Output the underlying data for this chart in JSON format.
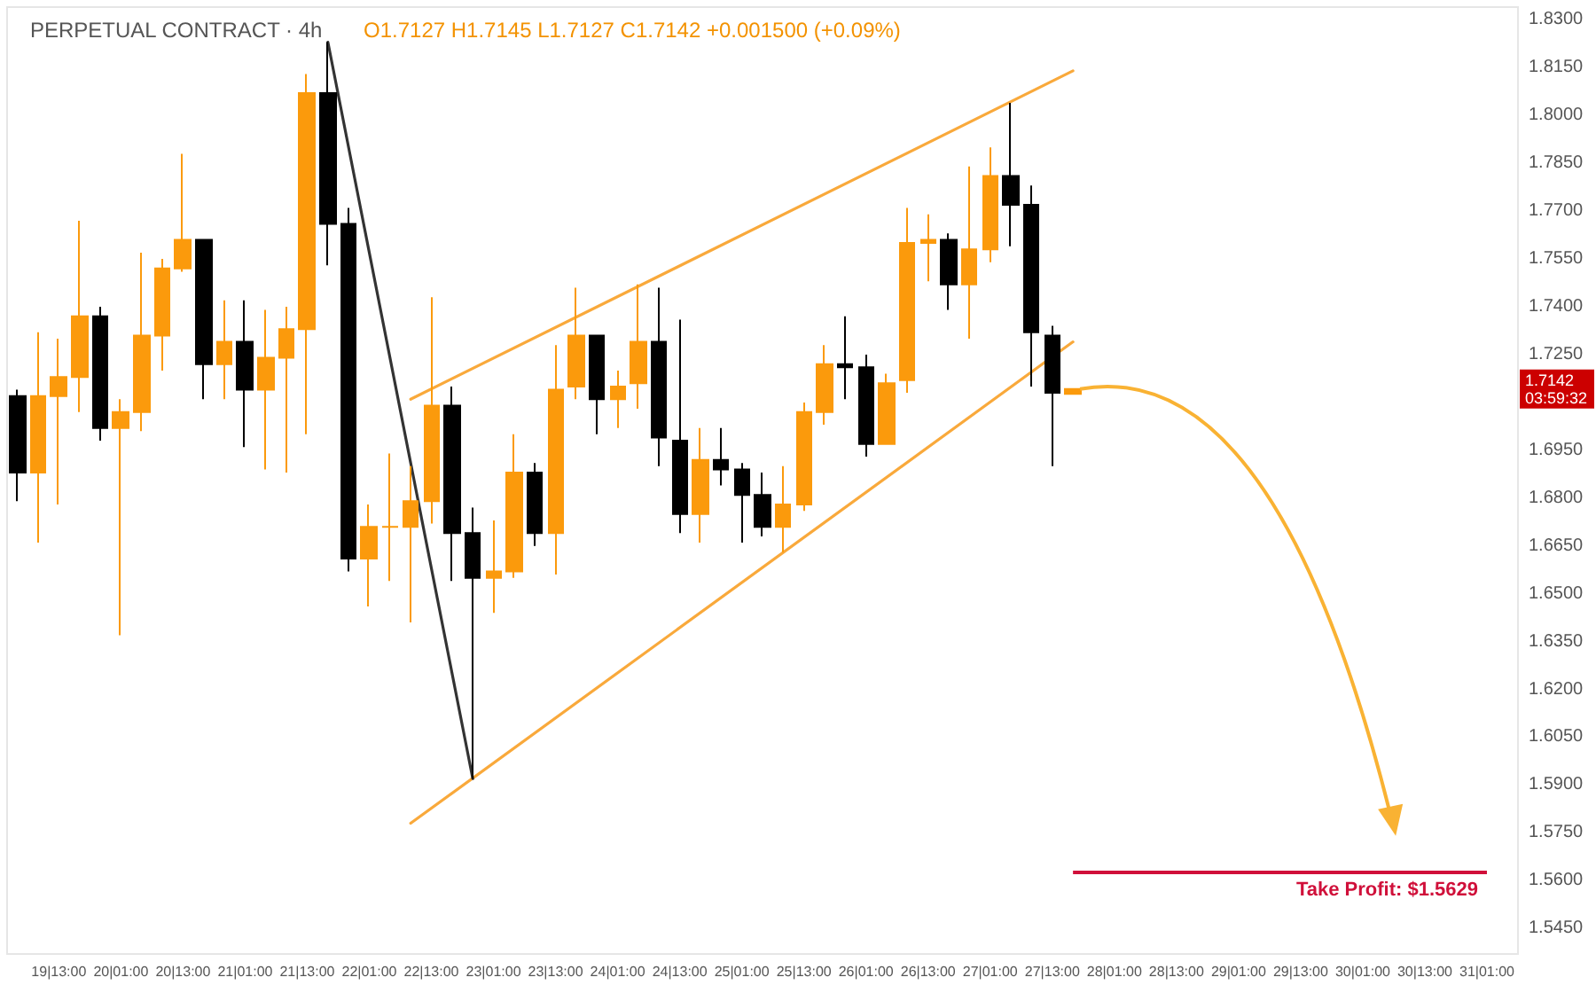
{
  "chart_data": {
    "type": "candlestick",
    "title": "PERPETUAL CONTRACT · 4h",
    "subtitle": "O1.7127 H1.7145 L1.7127 C1.7142 +0.001500 (+0.09%)",
    "categories": [
      null,
      null,
      "19|13:00",
      null,
      null,
      "20|01:00",
      null,
      null,
      "20|13:00",
      null,
      null,
      "21|01:00",
      null,
      null,
      "21|13:00",
      null,
      null,
      "22|01:00",
      null,
      null,
      "22|13:00",
      null,
      null,
      "23|01:00",
      null,
      null,
      "23|13:00",
      null,
      null,
      "24|01:00",
      null,
      null,
      "24|13:00",
      null,
      null,
      "25|01:00",
      null,
      null,
      "25|13:00",
      null,
      null,
      "26|01:00",
      null,
      null,
      "26|13:00",
      null,
      null,
      "27|01:00",
      null,
      null,
      "27|13:00",
      null,
      null,
      "28|01:00",
      null,
      null,
      "28|13:00",
      null,
      null,
      "29|01:00",
      null,
      null,
      "29|13:00",
      null,
      null,
      "30|01:00",
      null,
      null,
      "30|13:00",
      null,
      null,
      "31|01:00",
      null
    ],
    "ohlc": [
      [
        1.712,
        1.714,
        1.679,
        1.688
      ],
      [
        1.688,
        1.732,
        1.666,
        1.712
      ],
      [
        1.712,
        1.73,
        1.678,
        1.718
      ],
      [
        1.718,
        1.767,
        1.707,
        1.737
      ],
      [
        1.737,
        1.74,
        1.698,
        1.702
      ],
      [
        1.702,
        1.711,
        1.637,
        1.707
      ],
      [
        1.707,
        1.757,
        1.701,
        1.731
      ],
      [
        1.731,
        1.755,
        1.72,
        1.752
      ],
      [
        1.752,
        1.788,
        1.751,
        1.761
      ],
      [
        1.761,
        1.761,
        1.711,
        1.722
      ],
      [
        1.722,
        1.742,
        1.711,
        1.729
      ],
      [
        1.729,
        1.742,
        1.696,
        1.714
      ],
      [
        1.714,
        1.739,
        1.689,
        1.724
      ],
      [
        1.724,
        1.74,
        1.688,
        1.733
      ],
      [
        1.733,
        1.813,
        1.7,
        1.807
      ],
      [
        1.807,
        1.823,
        1.753,
        1.766
      ],
      [
        1.766,
        1.771,
        1.657,
        1.661
      ],
      [
        1.661,
        1.678,
        1.646,
        1.671
      ],
      [
        1.671,
        1.694,
        1.654,
        1.671
      ],
      [
        1.671,
        1.69,
        1.641,
        1.679
      ],
      [
        1.679,
        1.743,
        1.672,
        1.709
      ],
      [
        1.709,
        1.715,
        1.654,
        1.669
      ],
      [
        1.669,
        1.677,
        1.592,
        1.655
      ],
      [
        1.655,
        1.673,
        1.644,
        1.657
      ],
      [
        1.657,
        1.7,
        1.655,
        1.688
      ],
      [
        1.688,
        1.691,
        1.665,
        1.669
      ],
      [
        1.669,
        1.728,
        1.656,
        1.714
      ],
      [
        1.715,
        1.746,
        1.711,
        1.731
      ],
      [
        1.731,
        1.731,
        1.7,
        1.711
      ],
      [
        1.711,
        1.72,
        1.702,
        1.715
      ],
      [
        1.716,
        1.747,
        1.708,
        1.729
      ],
      [
        1.729,
        1.746,
        1.69,
        1.699
      ],
      [
        1.698,
        1.736,
        1.669,
        1.675
      ],
      [
        1.675,
        1.702,
        1.666,
        1.692
      ],
      [
        1.692,
        1.702,
        1.684,
        1.689
      ],
      [
        1.689,
        1.691,
        1.666,
        1.681
      ],
      [
        1.681,
        1.688,
        1.668,
        1.671
      ],
      [
        1.671,
        1.69,
        1.663,
        1.678
      ],
      [
        1.678,
        1.71,
        1.676,
        1.707
      ],
      [
        1.707,
        1.728,
        1.703,
        1.722
      ],
      [
        1.722,
        1.737,
        1.711,
        1.721
      ],
      [
        1.721,
        1.725,
        1.693,
        1.697
      ],
      [
        1.697,
        1.719,
        1.697,
        1.716
      ],
      [
        1.717,
        1.771,
        1.713,
        1.76
      ],
      [
        1.76,
        1.769,
        1.748,
        1.761
      ],
      [
        1.761,
        1.763,
        1.739,
        1.747
      ],
      [
        1.747,
        1.784,
        1.73,
        1.758
      ],
      [
        1.758,
        1.79,
        1.754,
        1.781
      ],
      [
        1.781,
        1.804,
        1.759,
        1.772
      ],
      [
        1.772,
        1.778,
        1.715,
        1.732
      ],
      [
        1.731,
        1.734,
        1.69,
        1.713
      ],
      [
        1.7127,
        1.7145,
        1.7127,
        1.7142
      ],
      null,
      null,
      null,
      null,
      null,
      null,
      null,
      null,
      null,
      null,
      null,
      null,
      null,
      null,
      null,
      null,
      null,
      null,
      null,
      null,
      null
    ],
    "colors": [
      "#000000",
      "#fb9a0c",
      "#fb9a0c",
      "#fb9a0c",
      "#000000",
      "#fb9a0c",
      "#fb9a0c",
      "#fb9a0c",
      "#fb9a0c",
      "#000000",
      "#fb9a0c",
      "#000000",
      "#fb9a0c",
      "#fb9a0c",
      "#fb9a0c",
      "#000000",
      "#000000",
      "#fb9a0c",
      "#fb9a0c",
      "#fb9a0c",
      "#fb9a0c",
      "#000000",
      "#000000",
      "#fb9a0c",
      "#fb9a0c",
      "#000000",
      "#fb9a0c",
      "#fb9a0c",
      "#000000",
      "#fb9a0c",
      "#fb9a0c",
      "#000000",
      "#000000",
      "#fb9a0c",
      "#000000",
      "#000000",
      "#000000",
      "#fb9a0c",
      "#fb9a0c",
      "#fb9a0c",
      "#000000",
      "#000000",
      "#fb9a0c",
      "#fb9a0c",
      "#fb9a0c",
      "#000000",
      "#fb9a0c",
      "#fb9a0c",
      "#000000",
      "#000000",
      "#000000",
      "#fb9a0c",
      null,
      null,
      null,
      null,
      null,
      null,
      null,
      null,
      null,
      null,
      null,
      null,
      null,
      null,
      null,
      null,
      null,
      null,
      null,
      null,
      null
    ],
    "series": [
      {
        "type": "line",
        "color": "#f9a93b",
        "values": [
          null,
          null,
          null,
          null,
          null,
          null,
          null,
          null,
          null,
          null,
          null,
          null,
          null,
          null,
          null,
          null,
          null,
          null,
          null,
          1.711,
          null,
          null,
          null,
          null,
          null,
          null,
          null,
          null,
          null,
          null,
          null,
          null,
          null,
          null,
          null,
          null,
          null,
          null,
          null,
          null,
          null,
          null,
          null,
          null,
          null,
          null,
          null,
          null,
          null,
          null,
          null,
          1.814,
          null,
          null,
          null,
          null,
          null,
          null,
          null,
          null,
          null,
          null,
          null,
          null,
          null,
          null,
          null,
          null,
          null,
          null,
          null,
          null,
          null
        ]
      },
      {
        "type": "line",
        "color": "#f9a93b",
        "values": [
          null,
          null,
          null,
          null,
          null,
          null,
          null,
          null,
          null,
          null,
          null,
          null,
          null,
          null,
          null,
          null,
          null,
          null,
          null,
          1.578,
          null,
          null,
          null,
          null,
          null,
          null,
          null,
          null,
          null,
          null,
          null,
          null,
          null,
          null,
          null,
          null,
          null,
          null,
          null,
          null,
          null,
          null,
          null,
          null,
          null,
          null,
          null,
          null,
          null,
          null,
          null,
          1.729,
          null,
          null,
          null,
          null,
          null,
          null,
          null,
          null,
          null,
          null,
          null,
          null,
          null,
          null,
          null,
          null,
          null,
          null,
          null,
          null,
          null
        ]
      },
      {
        "type": "line",
        "color": "#333333",
        "values": [
          null,
          null,
          null,
          null,
          null,
          null,
          null,
          null,
          null,
          null,
          null,
          null,
          null,
          null,
          null,
          1.823,
          null,
          null,
          null,
          null,
          null,
          null,
          1.592,
          null,
          null,
          null,
          null,
          null,
          null,
          null,
          null,
          null,
          null,
          null,
          null,
          null,
          null,
          null,
          null,
          null,
          null,
          null,
          null,
          null,
          null,
          null,
          null,
          null,
          null,
          null,
          null,
          null,
          null,
          null,
          null,
          null,
          null,
          null,
          null,
          null,
          null,
          null,
          null,
          null,
          null,
          null,
          null,
          null,
          null,
          null,
          null,
          null,
          null
        ]
      }
    ],
    "ylim": [
      1.537,
      1.834
    ],
    "yticks": [
      {
        "value": 1.545,
        "label": "1.5450"
      },
      {
        "value": 1.56,
        "label": "1.5600"
      },
      {
        "value": 1.575,
        "label": "1.5750"
      },
      {
        "value": 1.59,
        "label": "1.5900"
      },
      {
        "value": 1.605,
        "label": "1.6050"
      },
      {
        "value": 1.62,
        "label": "1.6200"
      },
      {
        "value": 1.635,
        "label": "1.6350"
      },
      {
        "value": 1.65,
        "label": "1.6500"
      },
      {
        "value": 1.665,
        "label": "1.6650"
      },
      {
        "value": 1.68,
        "label": "1.6800"
      },
      {
        "value": 1.695,
        "label": "1.6950"
      },
      {
        "value": 1.725,
        "label": "1.7250"
      },
      {
        "value": 1.74,
        "label": "1.7400"
      },
      {
        "value": 1.755,
        "label": "1.7550"
      },
      {
        "value": 1.77,
        "label": "1.7700"
      },
      {
        "value": 1.785,
        "label": "1.7850"
      },
      {
        "value": 1.8,
        "label": "1.8000"
      },
      {
        "value": 1.815,
        "label": "1.8150"
      },
      {
        "value": 1.83,
        "label": "1.8300"
      }
    ],
    "ref_lines": [
      {
        "axis": "y",
        "value": 1.5629,
        "label": "Take Profit: $1.5629",
        "color": "#d0103a"
      }
    ],
    "annotations": [
      {
        "text": "1.7142\n03:59:32",
        "y": 1.7142
      }
    ],
    "grid": false
  }
}
